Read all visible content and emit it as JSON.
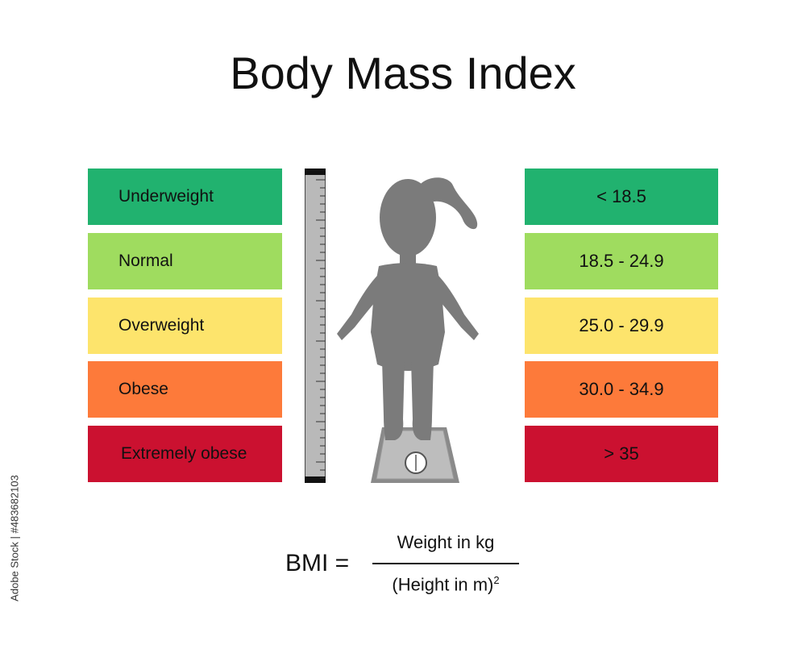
{
  "title": "Body Mass Index",
  "categories": [
    {
      "label": "Underweight",
      "range": "< 18.5",
      "color": "#21b26f"
    },
    {
      "label": "Normal",
      "range": "18.5 - 24.9",
      "color": "#9fdc5f"
    },
    {
      "label": "Overweight",
      "range": "25.0 - 29.9",
      "color": "#fde46c"
    },
    {
      "label": "Obese",
      "range": "30.0 - 34.9",
      "color": "#fd7a3a"
    },
    {
      "label": "Extremely obese",
      "range": "> 35",
      "color": "#cb1130"
    }
  ],
  "formula": {
    "lhs": "BMI =",
    "numerator": "Weight in kg",
    "denominator": "(Height in m)",
    "exponent": "2"
  },
  "stock_id": "Adobe Stock | #483682103",
  "icons": [
    "height-ruler-icon",
    "girl-silhouette-icon",
    "bathroom-scale-icon"
  ]
}
